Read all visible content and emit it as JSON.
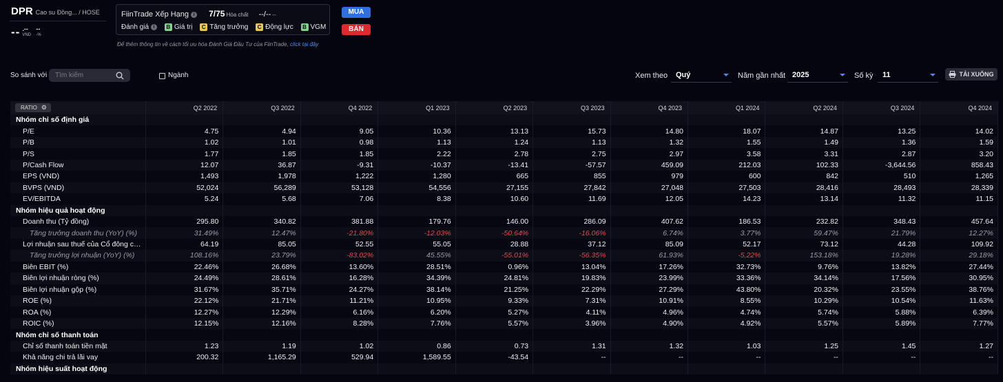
{
  "ticker": {
    "symbol": "DPR",
    "name": "Cao su Đồng... / HOSE"
  },
  "price": {
    "value": "--",
    "value_small": ".--",
    "unit": "VND",
    "change": "--",
    "change_pct": "-%"
  },
  "rank": {
    "label": "FiinTrade Xếp Hạng",
    "score": "7/75",
    "sector": "Hóa chất",
    "extra": "--/--",
    "extra_sub": "--",
    "eval_label": "Đánh giá",
    "grades": [
      {
        "grade": "B",
        "label": "Giá trị"
      },
      {
        "grade": "C",
        "label": "Tăng trưởng"
      },
      {
        "grade": "C",
        "label": "Động lực"
      },
      {
        "grade": "B",
        "label": "VGM"
      }
    ]
  },
  "actions": {
    "buy": "MUA",
    "sell": "BÁN"
  },
  "hint": {
    "text": "Để thêm thông tin về cách tối ưu hóa Đánh Giá Đầu Tư của FiinTrade,",
    "link": "click tại đây"
  },
  "compare": {
    "label": "So sánh với",
    "placeholder": "Tìm kiếm",
    "industry_label": "Ngành"
  },
  "filters": {
    "view_label": "Xem theo",
    "view_value": "Quý",
    "recent_label": "Năm gần nhất",
    "recent_value": "2025",
    "periods_label": "Số kỳ",
    "periods_value": "11",
    "download": "TẢI XUỐNG"
  },
  "table": {
    "ratio_label": "RATIO",
    "columns": [
      "Q2 2022",
      "Q3 2022",
      "Q4 2022",
      "Q1 2023",
      "Q2 2023",
      "Q3 2023",
      "Q4 2023",
      "Q1 2024",
      "Q2 2024",
      "Q3 2024",
      "Q4 2024"
    ],
    "rows": [
      {
        "type": "group",
        "label": "Nhóm chỉ số định giá",
        "values": []
      },
      {
        "type": "row",
        "label": "P/E",
        "values": [
          "4.75",
          "4.94",
          "9.05",
          "10.36",
          "13.13",
          "15.73",
          "14.80",
          "18.07",
          "14.87",
          "13.25",
          "14.02"
        ]
      },
      {
        "type": "row",
        "label": "P/B",
        "values": [
          "1.02",
          "1.01",
          "0.98",
          "1.13",
          "1.24",
          "1.13",
          "1.32",
          "1.55",
          "1.49",
          "1.36",
          "1.59"
        ]
      },
      {
        "type": "row",
        "label": "P/S",
        "values": [
          "1.77",
          "1.85",
          "1.85",
          "2.22",
          "2.78",
          "2.75",
          "2.97",
          "3.58",
          "3.31",
          "2.87",
          "3.20"
        ]
      },
      {
        "type": "row",
        "label": "P/Cash Flow",
        "values": [
          "12.07",
          "36.87",
          "-9.31",
          "-10.37",
          "-13.41",
          "-57.57",
          "459.09",
          "212.03",
          "102.33",
          "-3,644.56",
          "858.43"
        ]
      },
      {
        "type": "row",
        "label": "EPS (VND)",
        "values": [
          "1,493",
          "1,978",
          "1,222",
          "1,280",
          "665",
          "855",
          "979",
          "600",
          "842",
          "510",
          "1,265"
        ]
      },
      {
        "type": "row",
        "label": "BVPS (VND)",
        "values": [
          "52,024",
          "56,289",
          "53,128",
          "54,556",
          "27,155",
          "27,842",
          "27,048",
          "27,503",
          "28,416",
          "28,493",
          "28,339"
        ]
      },
      {
        "type": "row",
        "label": "EV/EBITDA",
        "values": [
          "5.24",
          "5.68",
          "7.06",
          "8.38",
          "10.60",
          "11.69",
          "12.05",
          "14.23",
          "13.14",
          "11.32",
          "11.15"
        ]
      },
      {
        "type": "group",
        "label": "Nhóm hiệu quả hoạt động",
        "values": []
      },
      {
        "type": "row",
        "label": "Doanh thu (Tỷ đồng)",
        "values": [
          "295.80",
          "340.82",
          "381.88",
          "179.76",
          "146.00",
          "286.09",
          "407.62",
          "186.53",
          "232.82",
          "348.43",
          "457.64"
        ]
      },
      {
        "type": "sub",
        "label": "Tăng trưởng doanh thu (YoY) (%)",
        "values": [
          "31.49%",
          "12.47%",
          "-21.80%",
          "-12.03%",
          "-50.64%",
          "-16.06%",
          "6.74%",
          "3.77%",
          "59.47%",
          "21.79%",
          "12.27%"
        ]
      },
      {
        "type": "row",
        "label": "Lợi nhuận sau thuế của Cổ đông công...",
        "values": [
          "64.19",
          "85.05",
          "52.55",
          "55.05",
          "28.88",
          "37.12",
          "85.09",
          "52.17",
          "73.12",
          "44.28",
          "109.92"
        ]
      },
      {
        "type": "sub",
        "label": "Tăng trưởng lợi nhuận (YoY) (%)",
        "values": [
          "108.16%",
          "23.79%",
          "-83.02%",
          "45.55%",
          "-55.01%",
          "-56.35%",
          "61.93%",
          "-5.22%",
          "153.18%",
          "19.28%",
          "29.18%"
        ]
      },
      {
        "type": "row",
        "label": "Biên EBIT (%)",
        "values": [
          "22.46%",
          "26.68%",
          "13.60%",
          "28.51%",
          "0.96%",
          "13.04%",
          "17.26%",
          "32.73%",
          "9.76%",
          "13.82%",
          "27.44%"
        ]
      },
      {
        "type": "row",
        "label": "Biên lợi nhuận ròng (%)",
        "values": [
          "24.49%",
          "28.61%",
          "16.28%",
          "34.39%",
          "24.81%",
          "19.83%",
          "23.99%",
          "33.36%",
          "34.14%",
          "17.56%",
          "30.95%"
        ]
      },
      {
        "type": "row",
        "label": "Biên lợi nhuận gộp (%)",
        "values": [
          "31.67%",
          "35.71%",
          "24.27%",
          "38.14%",
          "21.25%",
          "22.29%",
          "27.29%",
          "43.80%",
          "20.32%",
          "23.55%",
          "38.76%"
        ]
      },
      {
        "type": "row",
        "label": "ROE (%)",
        "values": [
          "22.12%",
          "21.71%",
          "11.21%",
          "10.95%",
          "9.33%",
          "7.31%",
          "10.91%",
          "8.55%",
          "10.29%",
          "10.54%",
          "11.63%"
        ]
      },
      {
        "type": "row",
        "label": "ROA (%)",
        "values": [
          "12.27%",
          "12.29%",
          "6.16%",
          "6.20%",
          "5.27%",
          "4.11%",
          "4.96%",
          "4.74%",
          "5.74%",
          "5.88%",
          "6.39%"
        ]
      },
      {
        "type": "row",
        "label": "ROIC (%)",
        "values": [
          "12.15%",
          "12.16%",
          "8.28%",
          "7.76%",
          "5.57%",
          "3.96%",
          "4.90%",
          "4.92%",
          "5.57%",
          "5.89%",
          "7.77%"
        ]
      },
      {
        "type": "group",
        "label": "Nhóm chỉ số thanh toán",
        "values": []
      },
      {
        "type": "row",
        "label": "Chỉ số thanh toán tiền mặt",
        "values": [
          "1.23",
          "1.19",
          "1.02",
          "0.86",
          "0.73",
          "1.31",
          "1.32",
          "1.03",
          "1.25",
          "1.45",
          "1.27"
        ]
      },
      {
        "type": "row",
        "label": "Khả năng chi trả lãi vay",
        "values": [
          "200.32",
          "1,165.29",
          "529.94",
          "1,589.55",
          "-43.54",
          "--",
          "--",
          "--",
          "--",
          "--",
          "--"
        ]
      },
      {
        "type": "group",
        "label": "Nhóm hiệu suất hoạt động",
        "values": []
      }
    ]
  }
}
